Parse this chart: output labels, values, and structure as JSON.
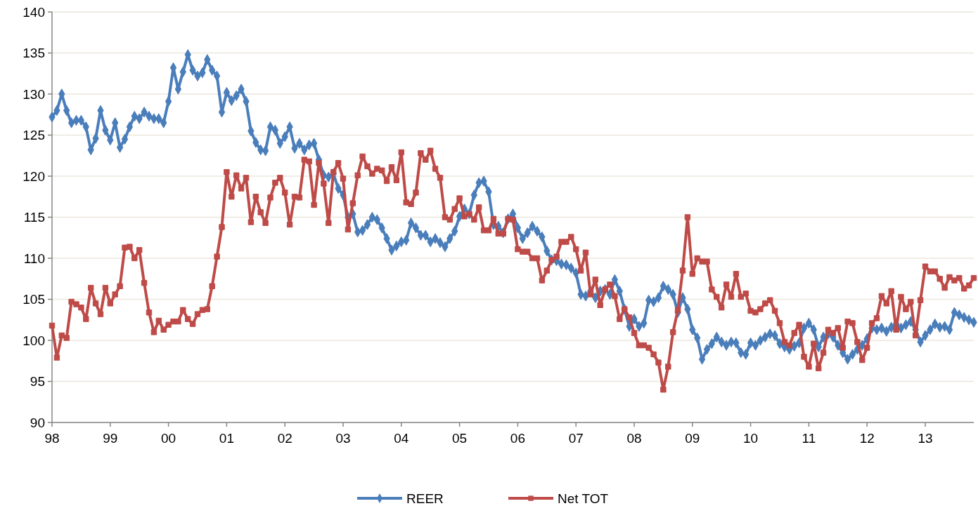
{
  "chart_data": {
    "type": "line",
    "categories": [
      "98",
      null,
      null,
      null,
      null,
      null,
      null,
      null,
      null,
      null,
      null,
      null,
      "99",
      null,
      null,
      null,
      null,
      null,
      null,
      null,
      null,
      null,
      null,
      null,
      "00",
      null,
      null,
      null,
      null,
      null,
      null,
      null,
      null,
      null,
      null,
      null,
      "01",
      null,
      null,
      null,
      null,
      null,
      null,
      null,
      null,
      null,
      null,
      null,
      "02",
      null,
      null,
      null,
      null,
      null,
      null,
      null,
      null,
      null,
      null,
      null,
      "03",
      null,
      null,
      null,
      null,
      null,
      null,
      null,
      null,
      null,
      null,
      null,
      "04",
      null,
      null,
      null,
      null,
      null,
      null,
      null,
      null,
      null,
      null,
      null,
      "05",
      null,
      null,
      null,
      null,
      null,
      null,
      null,
      null,
      null,
      null,
      null,
      "06",
      null,
      null,
      null,
      null,
      null,
      null,
      null,
      null,
      null,
      null,
      null,
      "07",
      null,
      null,
      null,
      null,
      null,
      null,
      null,
      null,
      null,
      null,
      null,
      "08",
      null,
      null,
      null,
      null,
      null,
      null,
      null,
      null,
      null,
      null,
      null,
      "09",
      null,
      null,
      null,
      null,
      null,
      null,
      null,
      null,
      null,
      null,
      null,
      "10",
      null,
      null,
      null,
      null,
      null,
      null,
      null,
      null,
      null,
      null,
      null,
      "11",
      null,
      null,
      null,
      null,
      null,
      null,
      null,
      null,
      null,
      null,
      null,
      "12",
      null,
      null,
      null,
      null,
      null,
      null,
      null,
      null,
      null,
      null,
      null,
      "13",
      null,
      null,
      null,
      null,
      null,
      null,
      null,
      null,
      null,
      null
    ],
    "series": [
      {
        "name": "REER",
        "color": "#4a7ebb",
        "marker": "diamond",
        "values": [
          127.2,
          128,
          130,
          128,
          126.5,
          126.8,
          126.8,
          126,
          123.2,
          124.6,
          128,
          125.6,
          124.4,
          126.5,
          123.5,
          124.5,
          126,
          127.3,
          127,
          127.8,
          127.3,
          127,
          127,
          126.5,
          129.1,
          133.2,
          130.6,
          132.7,
          134.8,
          132.9,
          132.2,
          132.6,
          134.2,
          132.9,
          132.2,
          127.8,
          130.2,
          129.2,
          129.8,
          130.6,
          129.1,
          125.5,
          124.1,
          123.2,
          123.1,
          126,
          125.6,
          124,
          124.8,
          126,
          123.4,
          124,
          123.2,
          123.8,
          124,
          122,
          120.1,
          119.9,
          120.3,
          118.5,
          117.7,
          115,
          115.4,
          113.2,
          113.4,
          114.1,
          115,
          114.7,
          113.7,
          112.4,
          111,
          111.5,
          112,
          112.2,
          114.3,
          113.7,
          112.8,
          112.8,
          112,
          112.4,
          111.9,
          111.4,
          112.4,
          113.3,
          115.1,
          116,
          115.4,
          117.7,
          119.2,
          119.4,
          118.1,
          114.1,
          113.9,
          113.1,
          114.8,
          115.4,
          113.7,
          112.4,
          113.1,
          113.9,
          113.3,
          112.6,
          110.9,
          109.8,
          109.7,
          109.3,
          109.2,
          108.8,
          108.2,
          105.6,
          105.4,
          106,
          105.2,
          106,
          106.2,
          105.6,
          107.4,
          106,
          103.8,
          101.7,
          102.6,
          101.7,
          102.1,
          104.9,
          104.7,
          105.2,
          106.6,
          106.2,
          105.6,
          103.4,
          105.2,
          103.8,
          101.3,
          100.3,
          97.7,
          98.9,
          99.6,
          100.4,
          99.8,
          99.4,
          99.8,
          99.7,
          98.5,
          98.3,
          99.7,
          99.4,
          100,
          100.4,
          100.8,
          100.6,
          99.6,
          99.2,
          98.9,
          99.3,
          99.7,
          101.5,
          102.1,
          101.3,
          99.2,
          100.4,
          100.8,
          100.4,
          99.4,
          98.5,
          97.7,
          98.3,
          98.9,
          99.4,
          100.2,
          101.5,
          101.3,
          101.5,
          101.1,
          101.6,
          102,
          101.5,
          101.9,
          102.3,
          101.3,
          99.8,
          100.6,
          101.3,
          102,
          101.6,
          101.7,
          101.3,
          103.4,
          103.1,
          102.8,
          102.5,
          102.2
        ]
      },
      {
        "name": "Net TOT",
        "color": "#be4b48",
        "marker": "square",
        "values": [
          101.8,
          97.9,
          100.6,
          100.3,
          104.7,
          104.4,
          104,
          102.6,
          106.4,
          104.5,
          103.2,
          106.4,
          104.5,
          105.6,
          106.6,
          111.3,
          111.4,
          110,
          111,
          107,
          103.4,
          101,
          102.4,
          101.3,
          101.9,
          102.3,
          102.3,
          103.7,
          102.6,
          102,
          103.2,
          103.7,
          103.8,
          106.6,
          110.2,
          113.8,
          120.5,
          117.5,
          120.1,
          118.5,
          119.8,
          114.4,
          117.5,
          115.6,
          114.3,
          117.4,
          119.2,
          119.8,
          118,
          114.1,
          117.5,
          117.4,
          122,
          121.8,
          116.5,
          121.6,
          119.1,
          114.3,
          120.5,
          121.6,
          119.7,
          113.5,
          116.7,
          120.1,
          122.4,
          121.2,
          120.3,
          120.9,
          120.7,
          119.4,
          121.1,
          119.5,
          122.9,
          116.8,
          116.6,
          118,
          122.8,
          122,
          123.1,
          120.9,
          119.8,
          115,
          114.7,
          116,
          117.3,
          115.1,
          115.4,
          114.7,
          116.2,
          113.4,
          113.4,
          114.8,
          113,
          113,
          114.8,
          114.7,
          111.1,
          110.8,
          110.8,
          110,
          110,
          107.3,
          108.5,
          109.8,
          110.2,
          112,
          112,
          112.6,
          111.1,
          108.5,
          110.7,
          105.6,
          107.4,
          104.3,
          106.2,
          106.8,
          105.4,
          102.6,
          103.8,
          102.8,
          100.9,
          99.4,
          99.4,
          99.1,
          98.3,
          97.3,
          94,
          96.8,
          101,
          103.7,
          108.5,
          115,
          108.1,
          110,
          109.6,
          109.6,
          106.2,
          105.3,
          104,
          106.8,
          105.3,
          108.1,
          105.3,
          105.7,
          103.6,
          103.4,
          103.8,
          104.5,
          104.9,
          103.6,
          102.1,
          99.8,
          99.4,
          100.9,
          101.9,
          98,
          96.8,
          99.6,
          96.6,
          98.5,
          101.3,
          100.9,
          101.5,
          99.1,
          102.3,
          102.1,
          99.8,
          97.6,
          99.1,
          102.1,
          102.7,
          105.4,
          104.5,
          106,
          101.3,
          105.3,
          103.8,
          104.7,
          100.6,
          104.9,
          109,
          108.4,
          108.4,
          107.5,
          106.4,
          107.7,
          107.3,
          107.6,
          106.3,
          106.7,
          107.6
        ]
      }
    ],
    "ylim": [
      90,
      140
    ],
    "yticks": [
      90,
      95,
      100,
      105,
      110,
      115,
      120,
      125,
      130,
      135,
      140
    ],
    "grid": "y",
    "legend": "bottom",
    "line_style": "solid"
  }
}
